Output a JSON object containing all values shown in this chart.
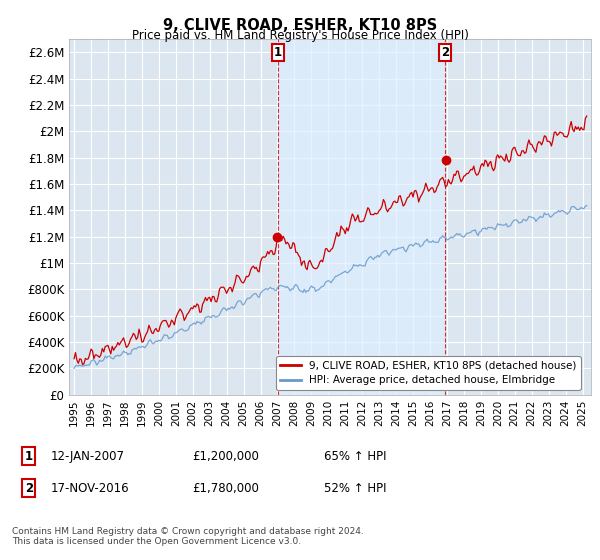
{
  "title": "9, CLIVE ROAD, ESHER, KT10 8PS",
  "subtitle": "Price paid vs. HM Land Registry's House Price Index (HPI)",
  "red_label": "9, CLIVE ROAD, ESHER, KT10 8PS (detached house)",
  "blue_label": "HPI: Average price, detached house, Elmbridge",
  "annotation1_date": "12-JAN-2007",
  "annotation1_price": "£1,200,000",
  "annotation1_pct": "65% ↑ HPI",
  "annotation1_year": 2007.04,
  "annotation1_value": 1200000,
  "annotation2_date": "17-NOV-2016",
  "annotation2_price": "£1,780,000",
  "annotation2_pct": "52% ↑ HPI",
  "annotation2_year": 2016.88,
  "annotation2_value": 1780000,
  "ylabel_ticks": [
    "£0",
    "£200K",
    "£400K",
    "£600K",
    "£800K",
    "£1M",
    "£1.2M",
    "£1.4M",
    "£1.6M",
    "£1.8M",
    "£2M",
    "£2.2M",
    "£2.4M",
    "£2.6M"
  ],
  "ytick_values": [
    0,
    200000,
    400000,
    600000,
    800000,
    1000000,
    1200000,
    1400000,
    1600000,
    1800000,
    2000000,
    2200000,
    2400000,
    2600000
  ],
  "ylim": [
    0,
    2700000
  ],
  "xlim_start": 1994.7,
  "xlim_end": 2025.5,
  "red_color": "#cc0000",
  "blue_color": "#6699cc",
  "shade_color": "#ddeeff",
  "plot_bg_color": "#dce6f0",
  "grid_color": "#ffffff",
  "footnote": "Contains HM Land Registry data © Crown copyright and database right 2024.\nThis data is licensed under the Open Government Licence v3.0."
}
